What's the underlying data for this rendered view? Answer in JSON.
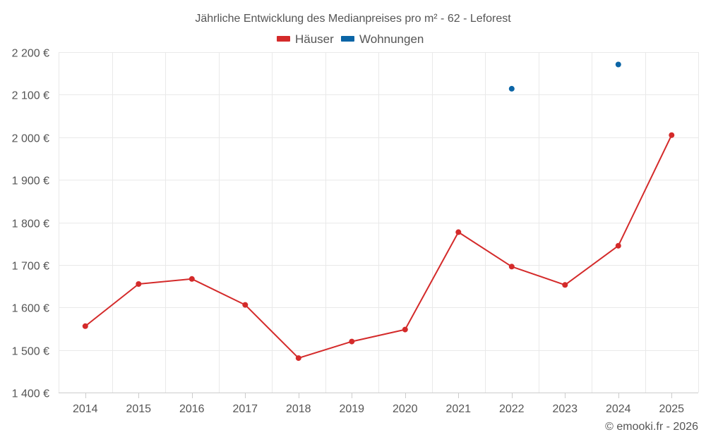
{
  "chart_data": {
    "type": "line",
    "title": "Jährliche Entwicklung des Medianpreises pro m² - 62 - Leforest",
    "xlabel": "",
    "ylabel": "",
    "categories": [
      "2014",
      "2015",
      "2016",
      "2017",
      "2018",
      "2019",
      "2020",
      "2021",
      "2022",
      "2023",
      "2024",
      "2025"
    ],
    "ylim": [
      1400,
      2200
    ],
    "yticks": [
      1400,
      1500,
      1600,
      1700,
      1800,
      1900,
      2000,
      2100,
      2200
    ],
    "ytick_labels": [
      "1 400 €",
      "1 500 €",
      "1 600 €",
      "1 700 €",
      "1 800 €",
      "1 900 €",
      "2 000 €",
      "2 100 €",
      "2 200 €"
    ],
    "grid": true,
    "legend_position": "top-center",
    "series": [
      {
        "name": "Häuser",
        "color": "#d42a2a",
        "values": [
          1556,
          1655,
          1667,
          1606,
          1481,
          1520,
          1548,
          1777,
          1696,
          1653,
          1745,
          2005
        ]
      },
      {
        "name": "Wohnungen",
        "color": "#0b65a6",
        "values": [
          null,
          null,
          null,
          null,
          null,
          null,
          null,
          null,
          2114,
          null,
          2171,
          null
        ]
      }
    ]
  },
  "footer": {
    "credit": "© emooki.fr - 2026"
  }
}
